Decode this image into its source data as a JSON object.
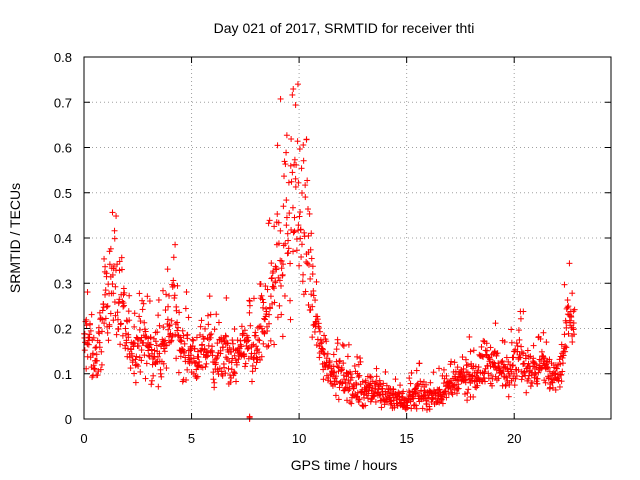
{
  "chart_data": {
    "type": "scatter",
    "title": "Day 021 of 2017, SRMTID for receiver thti",
    "xlabel": "GPS time / hours",
    "ylabel": "SRMTID / TECUs",
    "xlim": [
      0,
      24.5
    ],
    "ylim": [
      0,
      0.8
    ],
    "xticks": [
      0,
      5,
      10,
      15,
      20
    ],
    "xtick_labels": [
      "0",
      "5",
      "10",
      "15",
      "20"
    ],
    "yticks": [
      0,
      0.1,
      0.2,
      0.3,
      0.4,
      0.5,
      0.6,
      0.7,
      0.8
    ],
    "ytick_labels": [
      "0",
      "0.1",
      "0.2",
      "0.3",
      "0.4",
      "0.5",
      "0.6",
      "0.7",
      "0.8"
    ],
    "grid": true,
    "marker": "+",
    "color": "#ff0000",
    "series": [
      {
        "name": "SRMTID",
        "x": [
          0.0,
          0.2,
          0.4,
          0.6,
          0.8,
          1.0,
          1.2,
          1.4,
          1.6,
          1.8,
          2.0,
          2.2,
          2.4,
          2.6,
          2.8,
          3.0,
          3.2,
          3.4,
          3.6,
          3.8,
          4.0,
          4.2,
          4.4,
          4.6,
          4.8,
          5.0,
          5.2,
          5.4,
          5.6,
          5.8,
          6.0,
          6.2,
          6.4,
          6.6,
          6.8,
          7.0,
          7.2,
          7.4,
          7.6,
          7.7,
          7.8,
          8.0,
          8.2,
          8.4,
          8.6,
          8.8,
          9.0,
          9.2,
          9.4,
          9.6,
          9.8,
          10.0,
          10.2,
          10.4,
          10.6,
          10.8,
          11.0,
          11.2,
          11.4,
          11.6,
          11.8,
          12.0,
          12.2,
          12.4,
          12.6,
          12.8,
          13.0,
          13.2,
          13.4,
          13.6,
          13.8,
          14.0,
          14.2,
          14.4,
          14.6,
          14.8,
          15.0,
          15.2,
          15.4,
          15.6,
          15.8,
          16.0,
          16.2,
          16.4,
          16.6,
          16.8,
          17.0,
          17.2,
          17.4,
          17.6,
          17.8,
          18.0,
          18.2,
          18.4,
          18.6,
          18.8,
          19.0,
          19.2,
          19.4,
          19.6,
          19.8,
          20.0,
          20.2,
          20.4,
          20.6,
          20.8,
          21.0,
          21.2,
          21.4,
          21.6,
          21.8,
          22.0,
          22.2,
          22.4,
          22.6,
          22.8
        ],
        "center": [
          0.16,
          0.18,
          0.15,
          0.13,
          0.2,
          0.25,
          0.3,
          0.33,
          0.25,
          0.22,
          0.17,
          0.16,
          0.15,
          0.17,
          0.18,
          0.15,
          0.13,
          0.16,
          0.14,
          0.17,
          0.2,
          0.25,
          0.18,
          0.15,
          0.16,
          0.14,
          0.13,
          0.15,
          0.14,
          0.17,
          0.13,
          0.12,
          0.14,
          0.15,
          0.13,
          0.12,
          0.14,
          0.15,
          0.17,
          0.2,
          0.13,
          0.15,
          0.18,
          0.22,
          0.25,
          0.3,
          0.35,
          0.38,
          0.42,
          0.48,
          0.52,
          0.45,
          0.42,
          0.38,
          0.28,
          0.2,
          0.16,
          0.14,
          0.12,
          0.11,
          0.1,
          0.09,
          0.08,
          0.08,
          0.07,
          0.07,
          0.06,
          0.07,
          0.06,
          0.06,
          0.06,
          0.05,
          0.05,
          0.05,
          0.05,
          0.04,
          0.04,
          0.05,
          0.05,
          0.06,
          0.05,
          0.05,
          0.05,
          0.05,
          0.06,
          0.07,
          0.07,
          0.08,
          0.08,
          0.09,
          0.09,
          0.1,
          0.1,
          0.11,
          0.12,
          0.13,
          0.12,
          0.11,
          0.1,
          0.11,
          0.12,
          0.13,
          0.14,
          0.13,
          0.12,
          0.11,
          0.1,
          0.11,
          0.12,
          0.1,
          0.09,
          0.09,
          0.12,
          0.18,
          0.25,
          0.2
        ],
        "spread": [
          0.06,
          0.07,
          0.06,
          0.06,
          0.08,
          0.09,
          0.09,
          0.1,
          0.09,
          0.08,
          0.06,
          0.06,
          0.06,
          0.06,
          0.07,
          0.06,
          0.05,
          0.06,
          0.06,
          0.07,
          0.08,
          0.08,
          0.07,
          0.06,
          0.06,
          0.05,
          0.05,
          0.06,
          0.05,
          0.06,
          0.05,
          0.05,
          0.05,
          0.06,
          0.05,
          0.05,
          0.05,
          0.05,
          0.06,
          0.08,
          0.06,
          0.07,
          0.08,
          0.09,
          0.1,
          0.12,
          0.15,
          0.17,
          0.2,
          0.22,
          0.2,
          0.18,
          0.16,
          0.14,
          0.1,
          0.08,
          0.06,
          0.05,
          0.05,
          0.04,
          0.04,
          0.04,
          0.04,
          0.04,
          0.035,
          0.035,
          0.03,
          0.035,
          0.03,
          0.03,
          0.03,
          0.025,
          0.025,
          0.025,
          0.025,
          0.025,
          0.025,
          0.025,
          0.025,
          0.03,
          0.025,
          0.025,
          0.025,
          0.025,
          0.03,
          0.03,
          0.03,
          0.035,
          0.035,
          0.04,
          0.04,
          0.04,
          0.045,
          0.05,
          0.05,
          0.05,
          0.05,
          0.045,
          0.04,
          0.045,
          0.05,
          0.05,
          0.05,
          0.05,
          0.05,
          0.045,
          0.04,
          0.045,
          0.05,
          0.04,
          0.04,
          0.04,
          0.05,
          0.07,
          0.08,
          0.06
        ]
      }
    ],
    "outlier": {
      "x": 7.7,
      "y": 0.0
    }
  }
}
